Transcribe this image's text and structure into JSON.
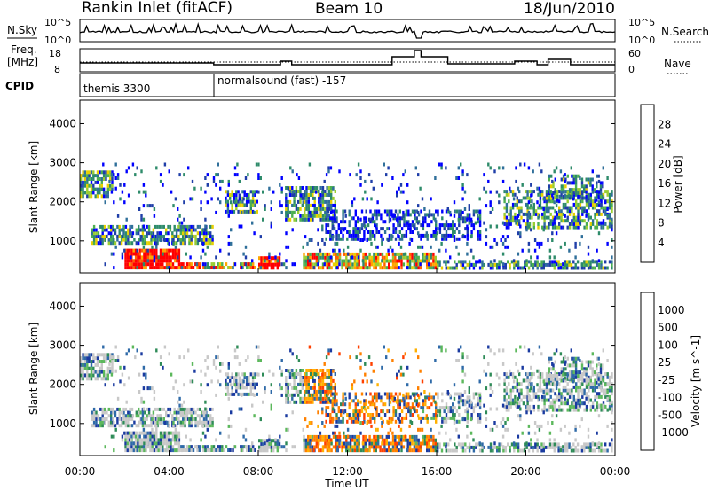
{
  "header": {
    "station": "Rankin Inlet (fitACF)",
    "beam": "Beam 10",
    "date": "18/Jun/2010"
  },
  "strips": {
    "nsky_label": "N.Sky",
    "nsky_ticks": [
      "10^5",
      "10^0"
    ],
    "nsearch_label": "N.Search",
    "nsearch_ticks": [
      "10^5",
      "10^0"
    ],
    "freq_label_1": "Freq.",
    "freq_label_2": "[MHz]",
    "freq_ticks": [
      "18",
      "8"
    ],
    "nave_label": "Nave",
    "nave_ticks": [
      "60",
      "0"
    ],
    "cpid_label": "CPID",
    "cpid_segments": [
      {
        "label": "themis 3300",
        "start": "00:00"
      },
      {
        "label": "normalsound (fast) -157",
        "start": "06:00"
      }
    ]
  },
  "chart_data": [
    {
      "type": "heatmap",
      "name": "power-panel",
      "ylabel": "Slant Range [km]",
      "yticks": [
        "4000",
        "3000",
        "2000",
        "1000"
      ],
      "ylim": [
        180,
        4600
      ],
      "xlim": [
        "00:00",
        "24:00"
      ],
      "colorbar_label": "Power [dB]",
      "colorbar_ticks": [
        "28",
        "24",
        "20",
        "16",
        "12",
        "8",
        "4"
      ],
      "colors": [
        "#0000ff",
        "#1f3ea8",
        "#2f6f9a",
        "#2e8b6a",
        "#4caf50",
        "#9acd32",
        "#e8d000",
        "#ffa500",
        "#ff6000",
        "#ff0000"
      ]
    },
    {
      "type": "heatmap",
      "name": "velocity-panel",
      "ylabel": "Slant Range [km]",
      "yticks": [
        "4000",
        "3000",
        "2000",
        "1000"
      ],
      "ylim": [
        180,
        4600
      ],
      "xlim": [
        "00:00",
        "24:00"
      ],
      "xlabel": "Time UT",
      "xticks": [
        "00:00",
        "04:00",
        "08:00",
        "12:00",
        "16:00",
        "20:00",
        "00:00"
      ],
      "colorbar_label": "Velocity [m s^-1]",
      "colorbar_ticks": [
        "1000",
        "500",
        "100",
        "25",
        "-25",
        "-100",
        "-500",
        "-1000"
      ],
      "colors": [
        "#1a3aa0",
        "#2f6aa8",
        "#2e8b57",
        "#5cb85c",
        "#c8c8c8",
        "#c8c8c8",
        "#ffb000",
        "#ff8000",
        "#ff4000",
        "#ff0000"
      ]
    }
  ]
}
